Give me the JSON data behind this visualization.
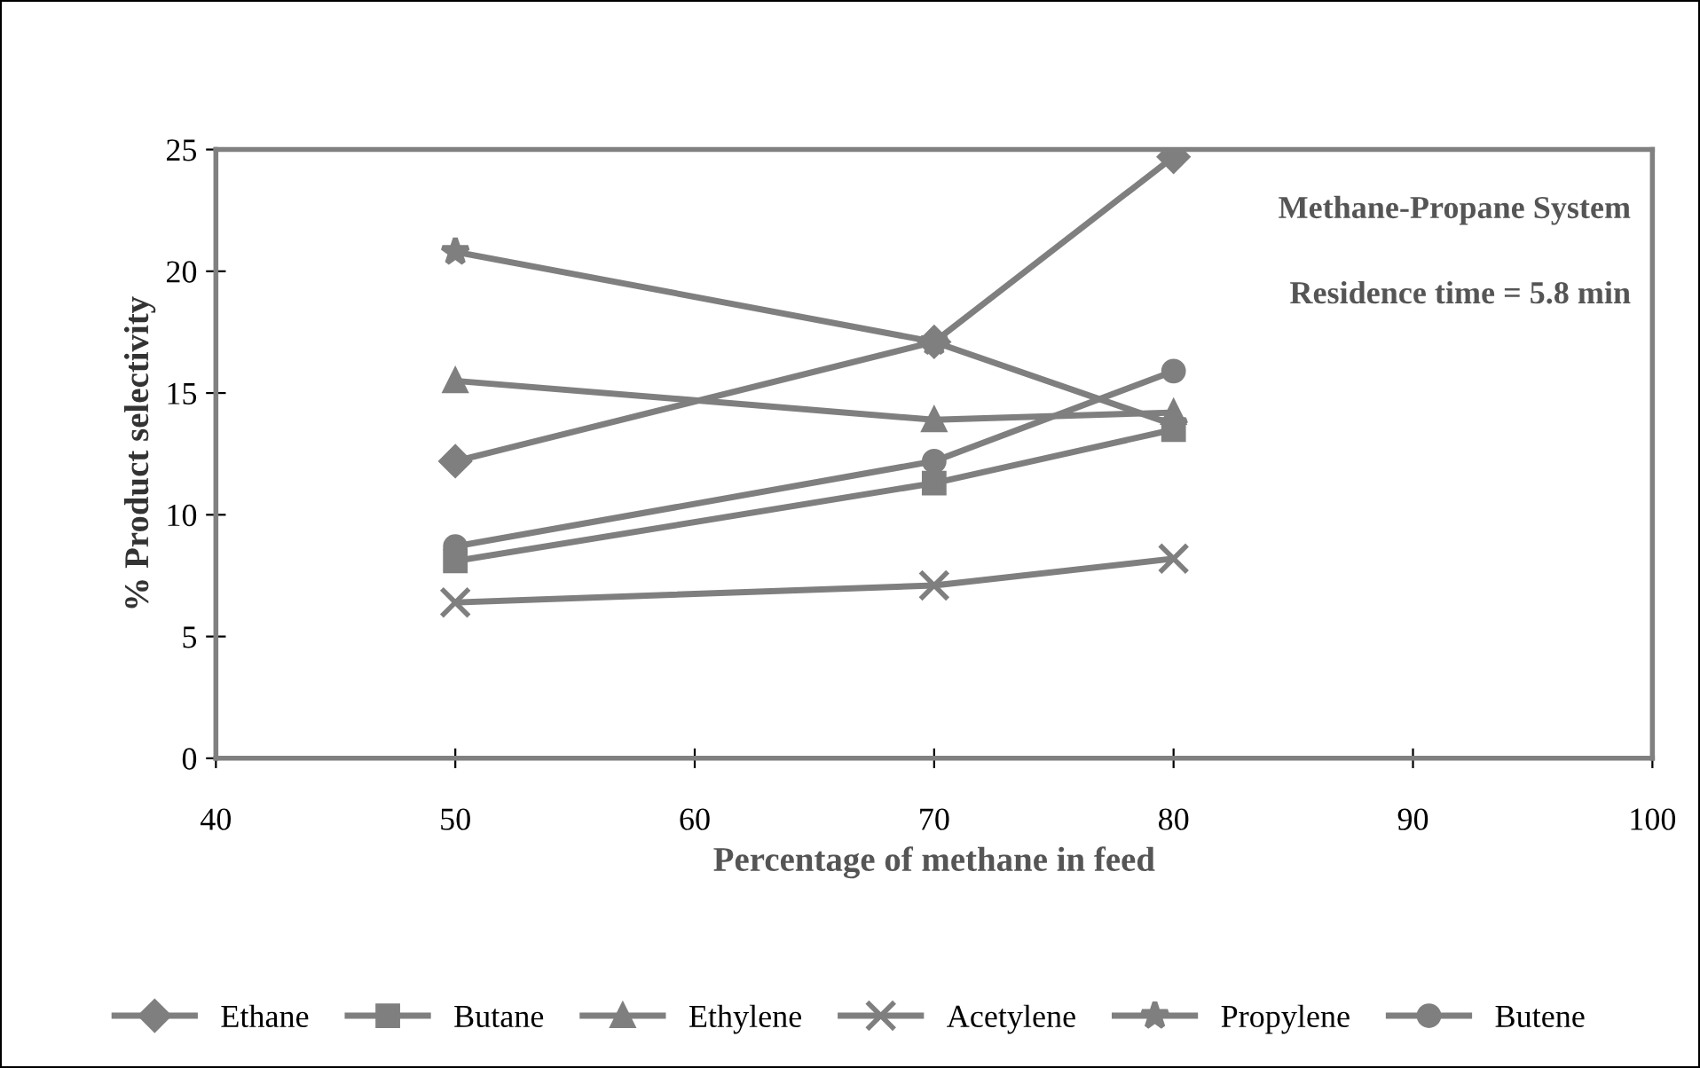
{
  "chart_data": {
    "type": "line",
    "xlabel": "Percentage of methane in feed",
    "ylabel": "% Product selectivity",
    "annotations": [
      "Methane-Propane System",
      "Residence time = 5.8 min"
    ],
    "x": [
      50,
      70,
      80
    ],
    "xlim": [
      40,
      100
    ],
    "xticks": [
      40,
      50,
      60,
      70,
      80,
      90,
      100
    ],
    "ylim": [
      0,
      25
    ],
    "yticks": [
      0,
      5,
      10,
      15,
      20,
      25
    ],
    "grid": false,
    "legend": "bottom",
    "series": [
      {
        "name": "Ethane",
        "color": "#7f7f7f",
        "marker": "diamond",
        "values": [
          12.2,
          17.1,
          24.7
        ]
      },
      {
        "name": "Butane",
        "color": "#7f7f7f",
        "marker": "square",
        "values": [
          8.1,
          11.3,
          13.5
        ]
      },
      {
        "name": "Ethylene",
        "color": "#7f7f7f",
        "marker": "triangle",
        "values": [
          15.5,
          13.9,
          14.2
        ]
      },
      {
        "name": "Acetylene",
        "color": "#7f7f7f",
        "marker": "cross",
        "values": [
          6.4,
          7.1,
          8.2
        ]
      },
      {
        "name": "Propylene",
        "color": "#7f7f7f",
        "marker": "star",
        "values": [
          20.8,
          17.1,
          13.7
        ]
      },
      {
        "name": "Butene",
        "color": "#7f7f7f",
        "marker": "circle",
        "values": [
          8.7,
          12.2,
          15.9
        ]
      }
    ]
  }
}
